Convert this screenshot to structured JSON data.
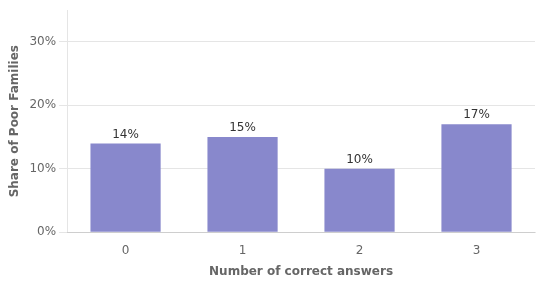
{
  "chart_data": {
    "type": "bar",
    "xlabel": "Number of correct answers",
    "ylabel": "Share of Poor Families",
    "categories": [
      "0",
      "1",
      "2",
      "3"
    ],
    "values": [
      14,
      15,
      10,
      17
    ],
    "value_labels": [
      "14%",
      "15%",
      "10%",
      "17%"
    ],
    "data_labels": true,
    "color": "#8888cc",
    "ylim": [
      0,
      35
    ],
    "yticks": [
      {
        "value": 0,
        "label": "0%"
      },
      {
        "value": 10,
        "label": "10%"
      },
      {
        "value": 20,
        "label": "20%"
      },
      {
        "value": 30,
        "label": "30%"
      }
    ],
    "grid": true
  }
}
